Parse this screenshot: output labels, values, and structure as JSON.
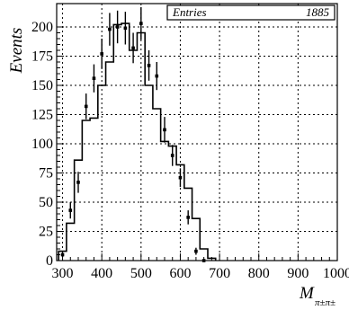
{
  "chart_data": {
    "type": "histogram",
    "xlabel": "M",
    "xlabel_subscript": "π±π±",
    "ylabel": "Events",
    "xlim": [
      285,
      1000
    ],
    "ylim": [
      0,
      220
    ],
    "x_ticks": [
      300,
      400,
      500,
      600,
      700,
      800,
      900,
      1000
    ],
    "y_ticks": [
      0,
      25,
      50,
      75,
      100,
      125,
      150,
      175,
      200
    ],
    "grid": true,
    "stats": {
      "label": "Entries",
      "value": "1885"
    },
    "bin_width": 20,
    "series": [
      {
        "kind": "mc-histogram",
        "bin_edges": [
          290,
          310,
          330,
          350,
          370,
          390,
          410,
          430,
          450,
          470,
          490,
          510,
          530,
          550,
          570,
          590,
          610,
          630,
          650,
          670,
          690
        ],
        "values": [
          8,
          32,
          86,
          120,
          122,
          150,
          170,
          202,
          203,
          180,
          195,
          150,
          130,
          102,
          98,
          82,
          62,
          36,
          10,
          2
        ]
      },
      {
        "kind": "data-points",
        "x": [
          300,
          320,
          340,
          360,
          380,
          400,
          420,
          440,
          460,
          480,
          500,
          520,
          540,
          560,
          580,
          600,
          620,
          640,
          660
        ],
        "y": [
          5,
          43,
          67,
          132,
          156,
          177,
          198,
          200,
          199,
          182,
          203,
          167,
          158,
          112,
          90,
          71,
          37,
          8,
          0
        ],
        "yerr": [
          2,
          7,
          9,
          11,
          12,
          13,
          14,
          14,
          14,
          13,
          14,
          13,
          12,
          11,
          9,
          8,
          6,
          3,
          0
        ]
      }
    ]
  }
}
